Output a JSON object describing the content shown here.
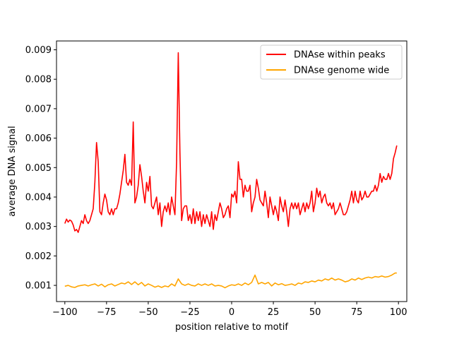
{
  "chart_data": {
    "type": "line",
    "title": "",
    "xlabel": "position relative to motif",
    "ylabel": "average DNA signal",
    "xlim": [
      -105,
      105
    ],
    "ylim": [
      0.00045,
      0.0093
    ],
    "xticks": [
      -100,
      -75,
      -50,
      -25,
      0,
      25,
      50,
      75,
      100
    ],
    "yticks": [
      0.001,
      0.002,
      0.003,
      0.004,
      0.005,
      0.006,
      0.007,
      0.008,
      0.009
    ],
    "ytick_labels": [
      "0.001",
      "0.002",
      "0.003",
      "0.004",
      "0.005",
      "0.006",
      "0.007",
      "0.008",
      "0.009"
    ],
    "grid": false,
    "legend_position": "top-right",
    "series": [
      {
        "name": "DNAse within peaks",
        "color": "#ff0000",
        "points": [
          [
            -100,
            0.0031
          ],
          [
            -99,
            0.00325
          ],
          [
            -98,
            0.00315
          ],
          [
            -97,
            0.00322
          ],
          [
            -96,
            0.00318
          ],
          [
            -95,
            0.00305
          ],
          [
            -94,
            0.00285
          ],
          [
            -93,
            0.0029
          ],
          [
            -92,
            0.0028
          ],
          [
            -91,
            0.003
          ],
          [
            -90,
            0.0032
          ],
          [
            -89,
            0.0031
          ],
          [
            -88,
            0.0034
          ],
          [
            -87,
            0.0032
          ],
          [
            -86,
            0.0031
          ],
          [
            -85,
            0.0032
          ],
          [
            -84,
            0.0034
          ],
          [
            -83,
            0.0036
          ],
          [
            -82,
            0.0045
          ],
          [
            -81,
            0.00585
          ],
          [
            -80,
            0.0052
          ],
          [
            -79,
            0.0035
          ],
          [
            -78,
            0.0034
          ],
          [
            -77,
            0.0038
          ],
          [
            -76,
            0.0041
          ],
          [
            -75,
            0.0039
          ],
          [
            -74,
            0.0035
          ],
          [
            -73,
            0.0034
          ],
          [
            -72,
            0.0036
          ],
          [
            -71,
            0.0034
          ],
          [
            -70,
            0.0036
          ],
          [
            -69,
            0.0036
          ],
          [
            -68,
            0.0038
          ],
          [
            -67,
            0.0041
          ],
          [
            -66,
            0.0045
          ],
          [
            -65,
            0.0049
          ],
          [
            -64,
            0.00545
          ],
          [
            -63,
            0.0045
          ],
          [
            -62,
            0.0044
          ],
          [
            -61,
            0.0046
          ],
          [
            -60,
            0.0044
          ],
          [
            -59,
            0.00655
          ],
          [
            -58,
            0.0038
          ],
          [
            -57,
            0.004
          ],
          [
            -56,
            0.0044
          ],
          [
            -55,
            0.0051
          ],
          [
            -54,
            0.0047
          ],
          [
            -53,
            0.0042
          ],
          [
            -52,
            0.0038
          ],
          [
            -51,
            0.0045
          ],
          [
            -50,
            0.0042
          ],
          [
            -49,
            0.0047
          ],
          [
            -48,
            0.0037
          ],
          [
            -47,
            0.0036
          ],
          [
            -46,
            0.0038
          ],
          [
            -45,
            0.004
          ],
          [
            -44,
            0.0034
          ],
          [
            -43,
            0.0038
          ],
          [
            -42,
            0.003
          ],
          [
            -41,
            0.0035
          ],
          [
            -40,
            0.0037
          ],
          [
            -39,
            0.0035
          ],
          [
            -38,
            0.0038
          ],
          [
            -37,
            0.0034
          ],
          [
            -36,
            0.004
          ],
          [
            -35,
            0.0037
          ],
          [
            -34,
            0.0034
          ],
          [
            -33,
            0.0052
          ],
          [
            -32,
            0.0089
          ],
          [
            -31,
            0.0055
          ],
          [
            -30,
            0.0032
          ],
          [
            -29,
            0.0036
          ],
          [
            -28,
            0.0037
          ],
          [
            -27,
            0.0037
          ],
          [
            -26,
            0.0032
          ],
          [
            -25,
            0.0034
          ],
          [
            -24,
            0.0031
          ],
          [
            -23,
            0.0036
          ],
          [
            -22,
            0.0031
          ],
          [
            -21,
            0.0035
          ],
          [
            -20,
            0.0032
          ],
          [
            -19,
            0.0035
          ],
          [
            -18,
            0.003
          ],
          [
            -17,
            0.0034
          ],
          [
            -16,
            0.0031
          ],
          [
            -15,
            0.0034
          ],
          [
            -14,
            0.0032
          ],
          [
            -13,
            0.003
          ],
          [
            -12,
            0.0035
          ],
          [
            -11,
            0.0029
          ],
          [
            -10,
            0.0034
          ],
          [
            -9,
            0.0032
          ],
          [
            -8,
            0.0035
          ],
          [
            -7,
            0.0038
          ],
          [
            -6,
            0.0036
          ],
          [
            -5,
            0.0033
          ],
          [
            -4,
            0.0034
          ],
          [
            -3,
            0.0036
          ],
          [
            -2,
            0.0037
          ],
          [
            -1,
            0.0033
          ],
          [
            0,
            0.0041
          ],
          [
            1,
            0.004
          ],
          [
            2,
            0.0042
          ],
          [
            3,
            0.0038
          ],
          [
            4,
            0.0052
          ],
          [
            5,
            0.0046
          ],
          [
            6,
            0.0046
          ],
          [
            7,
            0.004
          ],
          [
            8,
            0.0044
          ],
          [
            9,
            0.0042
          ],
          [
            10,
            0.0042
          ],
          [
            11,
            0.0044
          ],
          [
            12,
            0.0035
          ],
          [
            13,
            0.0038
          ],
          [
            14,
            0.004
          ],
          [
            15,
            0.0046
          ],
          [
            16,
            0.0043
          ],
          [
            17,
            0.0039
          ],
          [
            18,
            0.0038
          ],
          [
            19,
            0.0037
          ],
          [
            20,
            0.0042
          ],
          [
            21,
            0.0038
          ],
          [
            22,
            0.0033
          ],
          [
            23,
            0.004
          ],
          [
            24,
            0.0037
          ],
          [
            25,
            0.0034
          ],
          [
            26,
            0.0037
          ],
          [
            27,
            0.0035
          ],
          [
            28,
            0.0032
          ],
          [
            29,
            0.004
          ],
          [
            30,
            0.0037
          ],
          [
            31,
            0.0035
          ],
          [
            32,
            0.0039
          ],
          [
            33,
            0.0035
          ],
          [
            34,
            0.003
          ],
          [
            35,
            0.0036
          ],
          [
            36,
            0.0038
          ],
          [
            37,
            0.0036
          ],
          [
            38,
            0.0038
          ],
          [
            39,
            0.0036
          ],
          [
            40,
            0.0038
          ],
          [
            41,
            0.0034
          ],
          [
            42,
            0.0036
          ],
          [
            43,
            0.0038
          ],
          [
            44,
            0.0035
          ],
          [
            45,
            0.0038
          ],
          [
            46,
            0.0036
          ],
          [
            47,
            0.0038
          ],
          [
            48,
            0.0042
          ],
          [
            49,
            0.0035
          ],
          [
            50,
            0.0038
          ],
          [
            51,
            0.0043
          ],
          [
            52,
            0.004
          ],
          [
            53,
            0.0042
          ],
          [
            54,
            0.0038
          ],
          [
            55,
            0.004
          ],
          [
            56,
            0.0041
          ],
          [
            57,
            0.0038
          ],
          [
            58,
            0.0037
          ],
          [
            59,
            0.0038
          ],
          [
            60,
            0.0036
          ],
          [
            61,
            0.0038
          ],
          [
            62,
            0.0034
          ],
          [
            63,
            0.0035
          ],
          [
            64,
            0.0036
          ],
          [
            65,
            0.0038
          ],
          [
            66,
            0.0036
          ],
          [
            67,
            0.0034
          ],
          [
            68,
            0.0034
          ],
          [
            69,
            0.0035
          ],
          [
            70,
            0.0037
          ],
          [
            71,
            0.0039
          ],
          [
            72,
            0.0042
          ],
          [
            73,
            0.0038
          ],
          [
            74,
            0.0042
          ],
          [
            75,
            0.0039
          ],
          [
            76,
            0.0038
          ],
          [
            77,
            0.0042
          ],
          [
            78,
            0.0039
          ],
          [
            79,
            0.004
          ],
          [
            80,
            0.0042
          ],
          [
            81,
            0.004
          ],
          [
            82,
            0.004
          ],
          [
            83,
            0.0041
          ],
          [
            84,
            0.0042
          ],
          [
            85,
            0.0042
          ],
          [
            86,
            0.0044
          ],
          [
            87,
            0.0042
          ],
          [
            88,
            0.0044
          ],
          [
            89,
            0.0048
          ],
          [
            90,
            0.0045
          ],
          [
            91,
            0.0047
          ],
          [
            92,
            0.0046
          ],
          [
            93,
            0.0046
          ],
          [
            94,
            0.0048
          ],
          [
            95,
            0.0046
          ],
          [
            96,
            0.0048
          ],
          [
            97,
            0.0053
          ],
          [
            98,
            0.0055
          ],
          [
            99,
            0.00575
          ]
        ]
      },
      {
        "name": "DNAse genome wide",
        "color": "#ffa500",
        "points": [
          [
            -100,
            0.00097
          ],
          [
            -98,
            0.001
          ],
          [
            -96,
            0.00095
          ],
          [
            -94,
            0.00093
          ],
          [
            -92,
            0.00098
          ],
          [
            -90,
            0.001
          ],
          [
            -88,
            0.00102
          ],
          [
            -86,
            0.00098
          ],
          [
            -84,
            0.00102
          ],
          [
            -82,
            0.00105
          ],
          [
            -80,
            0.00098
          ],
          [
            -78,
            0.00104
          ],
          [
            -76,
            0.00095
          ],
          [
            -74,
            0.00102
          ],
          [
            -72,
            0.00105
          ],
          [
            -70,
            0.00098
          ],
          [
            -68,
            0.00103
          ],
          [
            -66,
            0.00108
          ],
          [
            -64,
            0.00105
          ],
          [
            -62,
            0.00112
          ],
          [
            -60,
            0.00103
          ],
          [
            -58,
            0.00112
          ],
          [
            -56,
            0.00102
          ],
          [
            -54,
            0.0011
          ],
          [
            -52,
            0.00098
          ],
          [
            -50,
            0.00105
          ],
          [
            -48,
            0.001
          ],
          [
            -46,
            0.00094
          ],
          [
            -44,
            0.00098
          ],
          [
            -42,
            0.00093
          ],
          [
            -40,
            0.00098
          ],
          [
            -38,
            0.00095
          ],
          [
            -36,
            0.00105
          ],
          [
            -34,
            0.00098
          ],
          [
            -32,
            0.00122
          ],
          [
            -30,
            0.00105
          ],
          [
            -28,
            0.001
          ],
          [
            -26,
            0.00105
          ],
          [
            -24,
            0.001
          ],
          [
            -22,
            0.00098
          ],
          [
            -20,
            0.00105
          ],
          [
            -18,
            0.001
          ],
          [
            -16,
            0.00105
          ],
          [
            -14,
            0.001
          ],
          [
            -12,
            0.00105
          ],
          [
            -10,
            0.00098
          ],
          [
            -8,
            0.001
          ],
          [
            -6,
            0.00098
          ],
          [
            -4,
            0.00092
          ],
          [
            -2,
            0.00098
          ],
          [
            0,
            0.00102
          ],
          [
            2,
            0.001
          ],
          [
            4,
            0.00105
          ],
          [
            6,
            0.001
          ],
          [
            8,
            0.00108
          ],
          [
            10,
            0.00102
          ],
          [
            12,
            0.0011
          ],
          [
            14,
            0.00135
          ],
          [
            16,
            0.00105
          ],
          [
            18,
            0.0011
          ],
          [
            20,
            0.00105
          ],
          [
            22,
            0.0011
          ],
          [
            24,
            0.00098
          ],
          [
            26,
            0.00108
          ],
          [
            28,
            0.00102
          ],
          [
            30,
            0.00106
          ],
          [
            32,
            0.001
          ],
          [
            34,
            0.00102
          ],
          [
            36,
            0.00105
          ],
          [
            38,
            0.001
          ],
          [
            40,
            0.00108
          ],
          [
            42,
            0.00105
          ],
          [
            44,
            0.00112
          ],
          [
            46,
            0.0011
          ],
          [
            48,
            0.00115
          ],
          [
            50,
            0.00112
          ],
          [
            52,
            0.00118
          ],
          [
            54,
            0.00115
          ],
          [
            56,
            0.00122
          ],
          [
            58,
            0.00118
          ],
          [
            60,
            0.00125
          ],
          [
            62,
            0.00118
          ],
          [
            64,
            0.00122
          ],
          [
            66,
            0.00118
          ],
          [
            68,
            0.00112
          ],
          [
            70,
            0.00115
          ],
          [
            72,
            0.00122
          ],
          [
            74,
            0.00118
          ],
          [
            76,
            0.00125
          ],
          [
            78,
            0.0012
          ],
          [
            80,
            0.00125
          ],
          [
            82,
            0.00128
          ],
          [
            84,
            0.00125
          ],
          [
            86,
            0.0013
          ],
          [
            88,
            0.00128
          ],
          [
            90,
            0.00132
          ],
          [
            92,
            0.00128
          ],
          [
            94,
            0.0013
          ],
          [
            96,
            0.00135
          ],
          [
            98,
            0.00142
          ],
          [
            99,
            0.00142
          ]
        ]
      }
    ]
  }
}
